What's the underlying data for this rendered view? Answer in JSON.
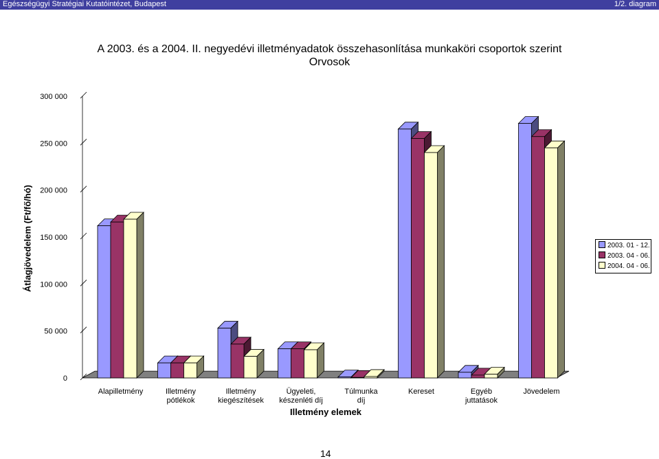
{
  "header": {
    "left": "Egészségügyi Stratégiai Kutatóintézet, Budapest",
    "right": "1/2. diagram"
  },
  "page_number": "14",
  "colors": {
    "header_bg": "#3f3f9f",
    "series": [
      "#9999ff",
      "#993366",
      "#ffffcc"
    ],
    "series_side": [
      "#4c4c80",
      "#4c1933",
      "#808066"
    ]
  },
  "chart_data": {
    "type": "bar",
    "title": "A 2003. és a 2004. II. negyedévi illetményadatok összehasonlítása munkaköri csoportok szerint",
    "subtitle": "Orvosok",
    "xlabel": "Illetmény elemek",
    "ylabel": "Átlagjövedelem (Ft/fő/hó)",
    "ylim": [
      0,
      300000
    ],
    "yticks": [
      "0",
      "50 000",
      "100 000",
      "150 000",
      "200 000",
      "250 000",
      "300 000"
    ],
    "categories": [
      [
        "Alapilletmény"
      ],
      [
        "Illetmény",
        "pótlékok"
      ],
      [
        "Illetmény",
        "kiegészítések"
      ],
      [
        "Ügyeleti,",
        "készenléti díj"
      ],
      [
        "Túlmunka",
        "díj"
      ],
      [
        "Kereset"
      ],
      [
        "Egyéb",
        "juttatások"
      ],
      [
        "Jövedelem"
      ]
    ],
    "series": [
      {
        "name": "2003. 01 - 12.",
        "values": [
          162000,
          16000,
          53000,
          31000,
          1000,
          265000,
          6000,
          271000
        ]
      },
      {
        "name": "2003. 04 - 06.",
        "values": [
          166000,
          16000,
          36000,
          31000,
          500,
          255000,
          3000,
          257000
        ]
      },
      {
        "name": "2004. 04 - 06.",
        "values": [
          169000,
          16000,
          23000,
          30000,
          1500,
          240000,
          4000,
          245000
        ]
      }
    ],
    "legend_position": "right",
    "grid": true
  }
}
